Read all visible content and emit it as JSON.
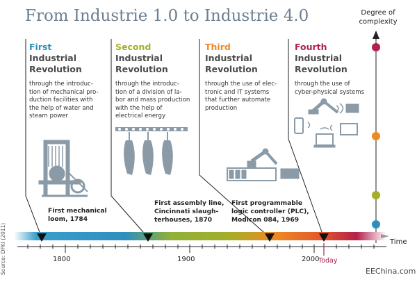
{
  "title": "From Industrie 1.0 to Industrie 4.0",
  "complexity_axis": {
    "label_line1": "Degree of",
    "label_line2": "complexity"
  },
  "revolutions": [
    {
      "ordinal": "First",
      "line2": "Industrial",
      "line3": "Revolution",
      "color": "#2e8fbf",
      "desc": [
        "through the introduc-",
        "tion of mechanical pro-",
        "duction facilities with",
        "the help of water and",
        "steam power"
      ],
      "milestone": [
        "First mechanical",
        "loom, 1784"
      ]
    },
    {
      "ordinal": "Second",
      "line2": "Industrial",
      "line3": "Revolution",
      "color": "#a4ae28",
      "desc": [
        "through the introduc-",
        "tion of a division of la-",
        "bor and mass production",
        "with the help of",
        "electrical energy"
      ],
      "milestone": [
        "First assembly line,",
        "Cincinnati slaugh-",
        "terhouses, 1870"
      ]
    },
    {
      "ordinal": "Third",
      "line2": "Industrial",
      "line3": "Revolution",
      "color": "#ee8a22",
      "desc": [
        "through the use of elec-",
        "tronic and IT systems",
        "that further automate",
        "production"
      ],
      "milestone": [
        "First programmable",
        "logic controller (PLC),",
        "Modicon 084, 1969"
      ]
    },
    {
      "ordinal": "Fourth",
      "line2": "Industrial",
      "line3": "Revolution",
      "color": "#b3204a",
      "desc": [
        "through the use of",
        "cyber-physical systems"
      ],
      "milestone": []
    }
  ],
  "timeline": {
    "ticks": [
      "1800",
      "1900",
      "2000"
    ],
    "time_label": "Time",
    "today_label": "Today",
    "colors": [
      "#3a9fca",
      "#a4ae28",
      "#ee8a22",
      "#b3204a"
    ]
  },
  "source": "Source: DFKI (2011)",
  "watermark": "EEChina.com"
}
